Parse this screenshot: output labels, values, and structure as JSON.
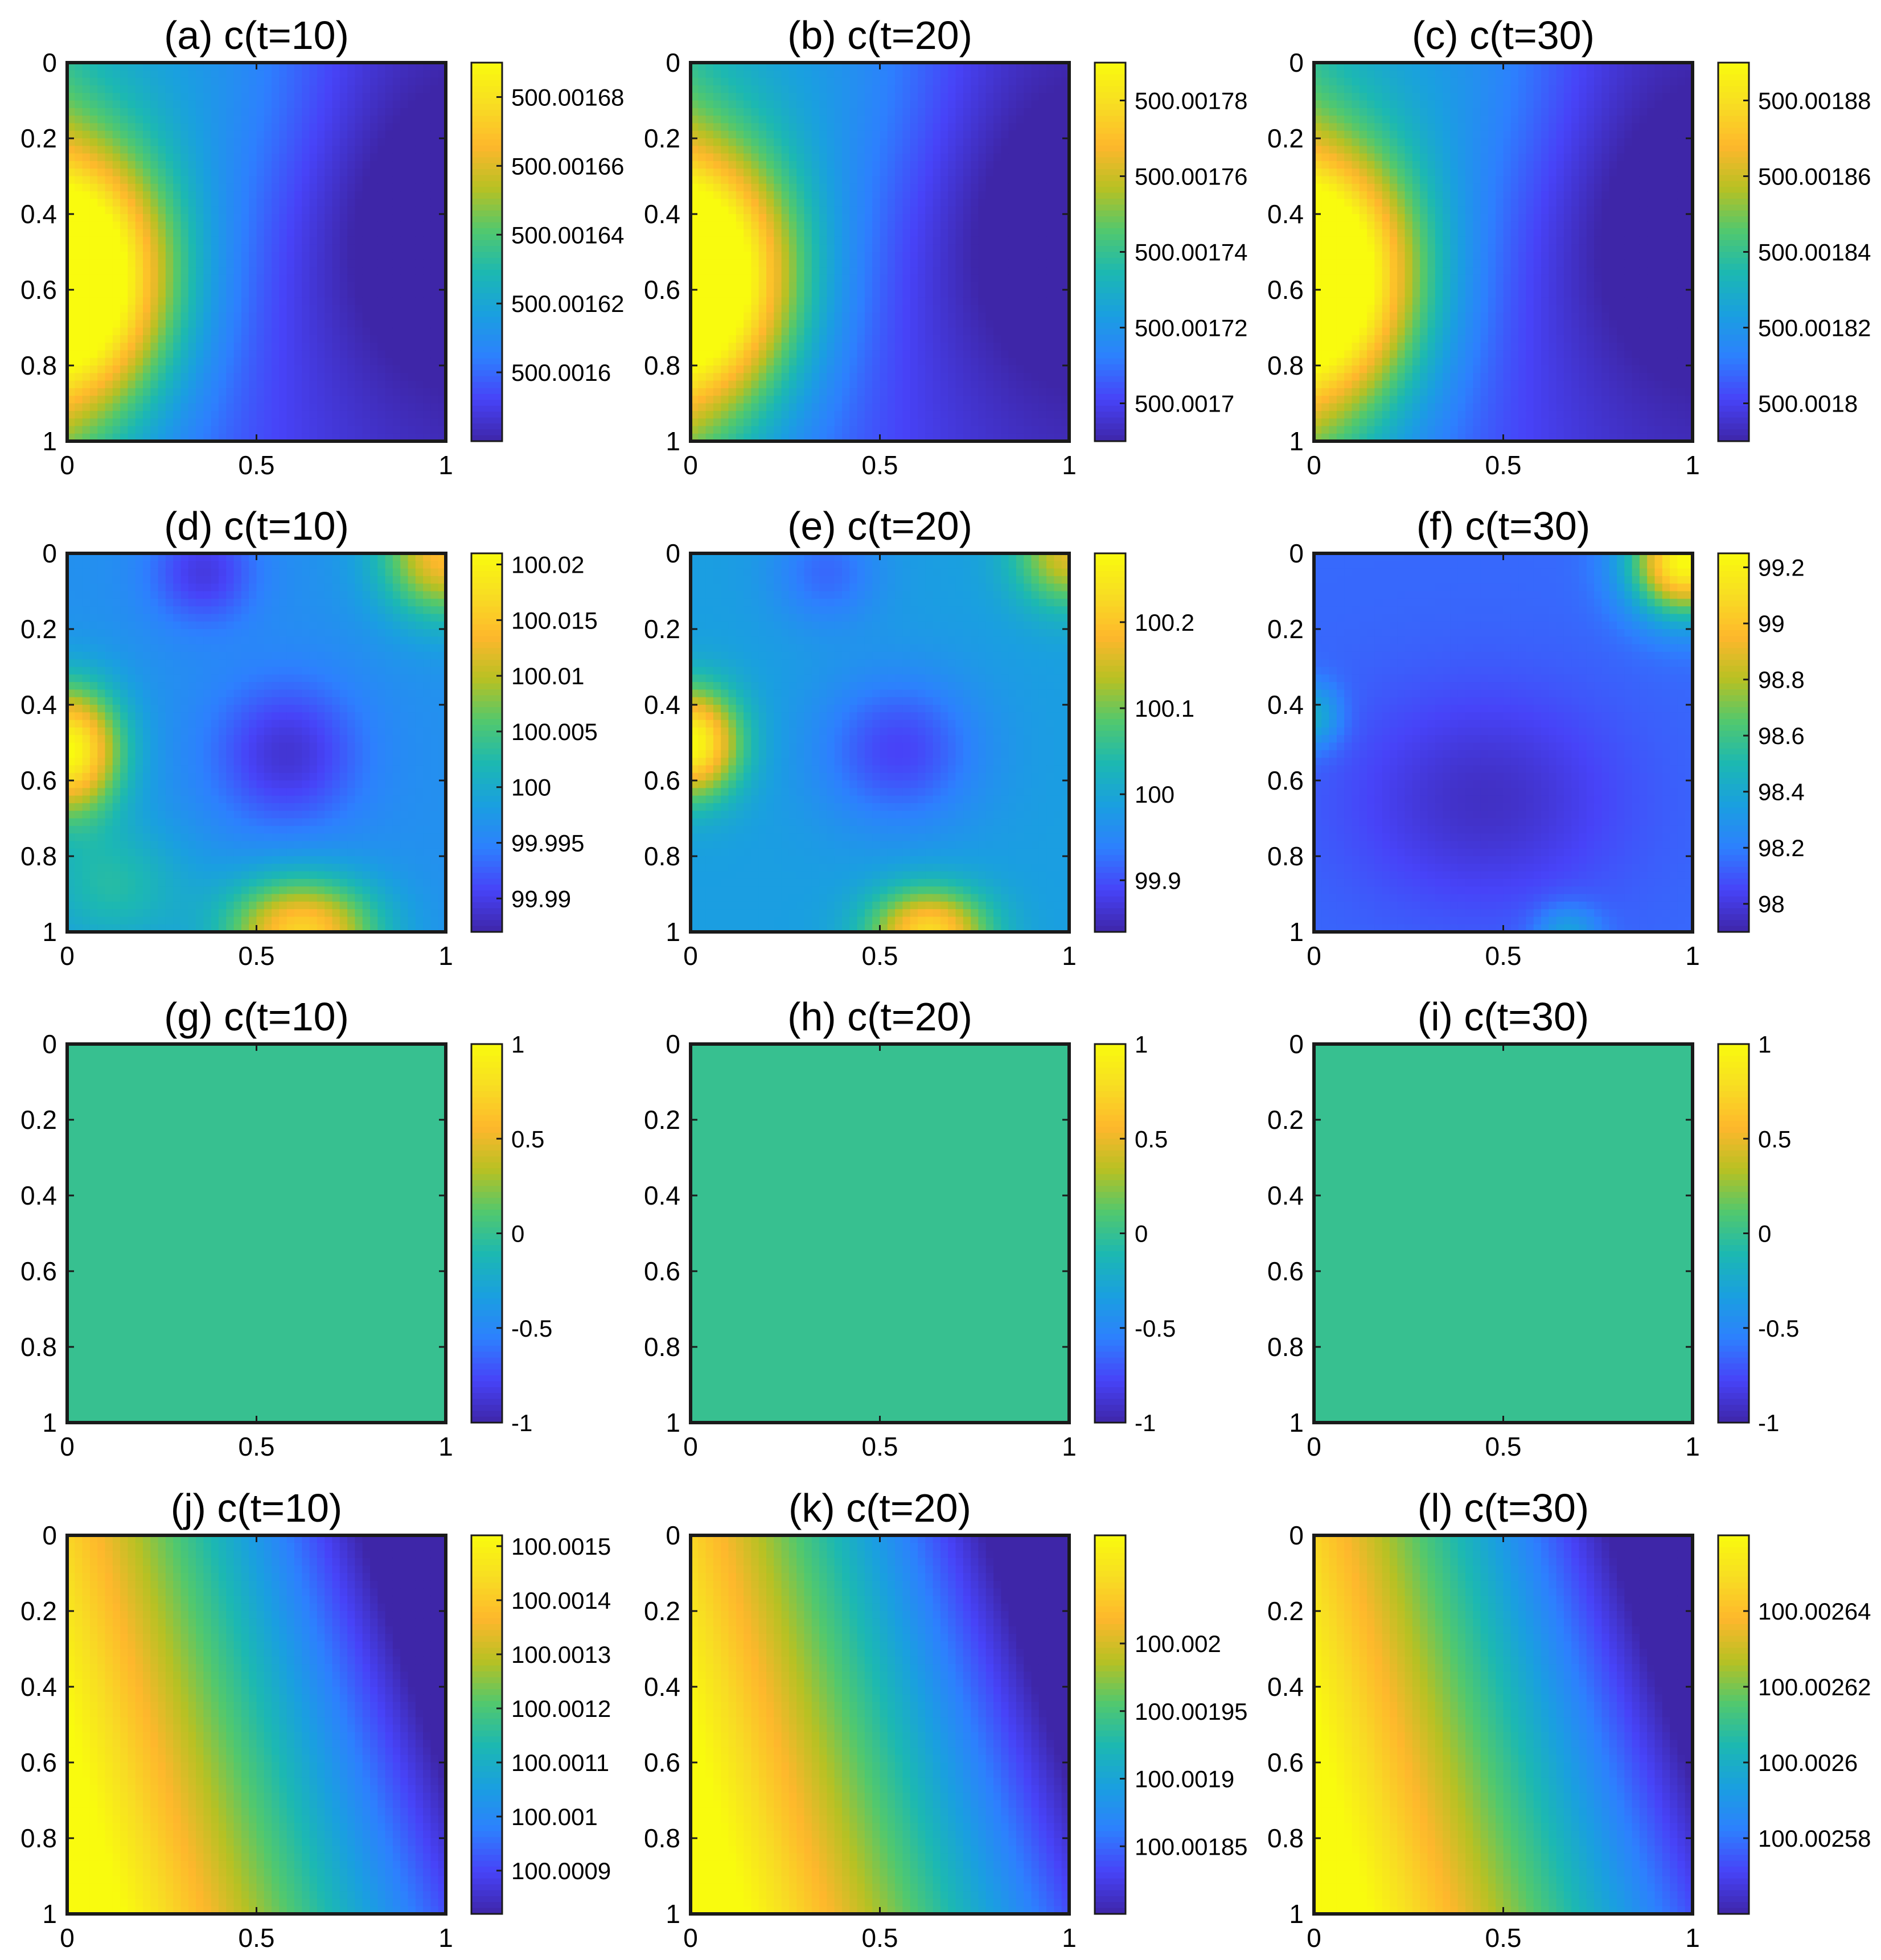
{
  "figure": {
    "description": "12 heatmap panels of concentration c over the unit square at t=10, 20, 30"
  },
  "colormap": {
    "name": "parula",
    "stops": [
      "#3e26a8",
      "#4743f8",
      "#2d80fe",
      "#1a9fe0",
      "#1cb8b2",
      "#51c86e",
      "#b7c123",
      "#feb72c",
      "#f8dd23",
      "#f9fb0e"
    ]
  },
  "chart_data": [
    {
      "id": "a",
      "type": "heatmap",
      "title": "(a) c(t=10)",
      "pattern": "left_lobe",
      "xlim": [
        0,
        1
      ],
      "ylim": [
        0,
        1
      ],
      "x_ticks": [
        "0",
        "0.5",
        "1"
      ],
      "y_ticks": [
        "0",
        "0.2",
        "0.4",
        "0.6",
        "0.8",
        "1"
      ],
      "clim": [
        500.00158,
        500.00169
      ],
      "colorbar_ticks": [
        "500.0016",
        "500.00162",
        "500.00164",
        "500.00166",
        "500.00168"
      ],
      "colorbar_tick_values": [
        500.0016,
        500.00162,
        500.00164,
        500.00166,
        500.00168
      ]
    },
    {
      "id": "b",
      "type": "heatmap",
      "title": "(b) c(t=20)",
      "pattern": "left_lobe",
      "xlim": [
        0,
        1
      ],
      "ylim": [
        0,
        1
      ],
      "x_ticks": [
        "0",
        "0.5",
        "1"
      ],
      "y_ticks": [
        "0",
        "0.2",
        "0.4",
        "0.6",
        "0.8",
        "1"
      ],
      "clim": [
        500.00169,
        500.00179
      ],
      "colorbar_ticks": [
        "500.0017",
        "500.00172",
        "500.00174",
        "500.00176",
        "500.00178"
      ],
      "colorbar_tick_values": [
        500.0017,
        500.00172,
        500.00174,
        500.00176,
        500.00178
      ]
    },
    {
      "id": "c",
      "type": "heatmap",
      "title": "(c) c(t=30)",
      "pattern": "left_lobe",
      "xlim": [
        0,
        1
      ],
      "ylim": [
        0,
        1
      ],
      "x_ticks": [
        "0",
        "0.5",
        "1"
      ],
      "y_ticks": [
        "0",
        "0.2",
        "0.4",
        "0.6",
        "0.8",
        "1"
      ],
      "clim": [
        500.00179,
        500.00189
      ],
      "colorbar_ticks": [
        "500.0018",
        "500.00182",
        "500.00184",
        "500.00186",
        "500.00188"
      ],
      "colorbar_tick_values": [
        500.0018,
        500.00182,
        500.00184,
        500.00186,
        500.00188
      ]
    },
    {
      "id": "d",
      "type": "heatmap",
      "title": "(d) c(t=10)",
      "pattern": "multi_lobe",
      "xlim": [
        0,
        1
      ],
      "ylim": [
        0,
        1
      ],
      "x_ticks": [
        "0",
        "0.5",
        "1"
      ],
      "y_ticks": [
        "0",
        "0.2",
        "0.4",
        "0.6",
        "0.8",
        "1"
      ],
      "clim": [
        99.987,
        100.021
      ],
      "colorbar_ticks": [
        "99.99",
        "99.995",
        "100",
        "100.005",
        "100.01",
        "100.015",
        "100.02"
      ],
      "colorbar_tick_values": [
        99.99,
        99.995,
        100,
        100.005,
        100.01,
        100.015,
        100.02
      ]
    },
    {
      "id": "e",
      "type": "heatmap",
      "title": "(e) c(t=20)",
      "pattern": "multi_lobe",
      "xlim": [
        0,
        1
      ],
      "ylim": [
        0,
        1
      ],
      "x_ticks": [
        "0",
        "0.5",
        "1"
      ],
      "y_ticks": [
        "0",
        "0.2",
        "0.4",
        "0.6",
        "0.8",
        "1"
      ],
      "clim": [
        99.84,
        100.28
      ],
      "colorbar_ticks": [
        "99.9",
        "100",
        "100.1",
        "100.2"
      ],
      "colorbar_tick_values": [
        99.9,
        100,
        100.1,
        100.2
      ]
    },
    {
      "id": "f",
      "type": "heatmap",
      "title": "(f) c(t=30)",
      "pattern": "corner_lobe",
      "xlim": [
        0,
        1
      ],
      "ylim": [
        0,
        1
      ],
      "x_ticks": [
        "0",
        "0.5",
        "1"
      ],
      "y_ticks": [
        "0",
        "0.2",
        "0.4",
        "0.6",
        "0.8",
        "1"
      ],
      "clim": [
        97.9,
        99.25
      ],
      "colorbar_ticks": [
        "98",
        "98.2",
        "98.4",
        "98.6",
        "98.8",
        "99",
        "99.2"
      ],
      "colorbar_tick_values": [
        98,
        98.2,
        98.4,
        98.6,
        98.8,
        99,
        99.2
      ]
    },
    {
      "id": "g",
      "type": "heatmap",
      "title": "(g) c(t=10)",
      "pattern": "uniform",
      "uniform_value": 0,
      "xlim": [
        0,
        1
      ],
      "ylim": [
        0,
        1
      ],
      "x_ticks": [
        "0",
        "0.5",
        "1"
      ],
      "y_ticks": [
        "0",
        "0.2",
        "0.4",
        "0.6",
        "0.8",
        "1"
      ],
      "clim": [
        -1,
        1
      ],
      "colorbar_ticks": [
        "-1",
        "-0.5",
        "0",
        "0.5",
        "1"
      ],
      "colorbar_tick_values": [
        -1,
        -0.5,
        0,
        0.5,
        1
      ]
    },
    {
      "id": "h",
      "type": "heatmap",
      "title": "(h) c(t=20)",
      "pattern": "uniform",
      "uniform_value": 0,
      "xlim": [
        0,
        1
      ],
      "ylim": [
        0,
        1
      ],
      "x_ticks": [
        "0",
        "0.5",
        "1"
      ],
      "y_ticks": [
        "0",
        "0.2",
        "0.4",
        "0.6",
        "0.8",
        "1"
      ],
      "clim": [
        -1,
        1
      ],
      "colorbar_ticks": [
        "-1",
        "-0.5",
        "0",
        "0.5",
        "1"
      ],
      "colorbar_tick_values": [
        -1,
        -0.5,
        0,
        0.5,
        1
      ]
    },
    {
      "id": "i",
      "type": "heatmap",
      "title": "(i) c(t=30)",
      "pattern": "uniform",
      "uniform_value": 0,
      "xlim": [
        0,
        1
      ],
      "ylim": [
        0,
        1
      ],
      "x_ticks": [
        "0",
        "0.5",
        "1"
      ],
      "y_ticks": [
        "0",
        "0.2",
        "0.4",
        "0.6",
        "0.8",
        "1"
      ],
      "clim": [
        -1,
        1
      ],
      "colorbar_ticks": [
        "-1",
        "-0.5",
        "0",
        "0.5",
        "1"
      ],
      "colorbar_tick_values": [
        -1,
        -0.5,
        0,
        0.5,
        1
      ]
    },
    {
      "id": "j",
      "type": "heatmap",
      "title": "(j) c(t=10)",
      "pattern": "gradient",
      "xlim": [
        0,
        1
      ],
      "ylim": [
        0,
        1
      ],
      "x_ticks": [
        "0",
        "0.5",
        "1"
      ],
      "y_ticks": [
        "0",
        "0.2",
        "0.4",
        "0.6",
        "0.8",
        "1"
      ],
      "clim": [
        100.00082,
        100.00152
      ],
      "colorbar_ticks": [
        "100.0009",
        "100.001",
        "100.0011",
        "100.0012",
        "100.0013",
        "100.0014",
        "100.0015"
      ],
      "colorbar_tick_values": [
        100.0009,
        100.001,
        100.0011,
        100.0012,
        100.0013,
        100.0014,
        100.0015
      ]
    },
    {
      "id": "k",
      "type": "heatmap",
      "title": "(k) c(t=20)",
      "pattern": "gradient",
      "xlim": [
        0,
        1
      ],
      "ylim": [
        0,
        1
      ],
      "x_ticks": [
        "0",
        "0.5",
        "1"
      ],
      "y_ticks": [
        "0",
        "0.2",
        "0.4",
        "0.6",
        "0.8",
        "1"
      ],
      "clim": [
        100.0018,
        100.00208
      ],
      "colorbar_ticks": [
        "100.00185",
        "100.0019",
        "100.00195",
        "100.002"
      ],
      "colorbar_tick_values": [
        100.00185,
        100.0019,
        100.00195,
        100.002
      ]
    },
    {
      "id": "l",
      "type": "heatmap",
      "title": "(l) c(t=30)",
      "pattern": "gradient",
      "xlim": [
        0,
        1
      ],
      "ylim": [
        0,
        1
      ],
      "x_ticks": [
        "0",
        "0.5",
        "1"
      ],
      "y_ticks": [
        "0",
        "0.2",
        "0.4",
        "0.6",
        "0.8",
        "1"
      ],
      "clim": [
        100.00256,
        100.00266
      ],
      "colorbar_ticks": [
        "100.00258",
        "100.0026",
        "100.00262",
        "100.00264"
      ],
      "colorbar_tick_values": [
        100.00258,
        100.0026,
        100.00262,
        100.00264
      ]
    }
  ]
}
